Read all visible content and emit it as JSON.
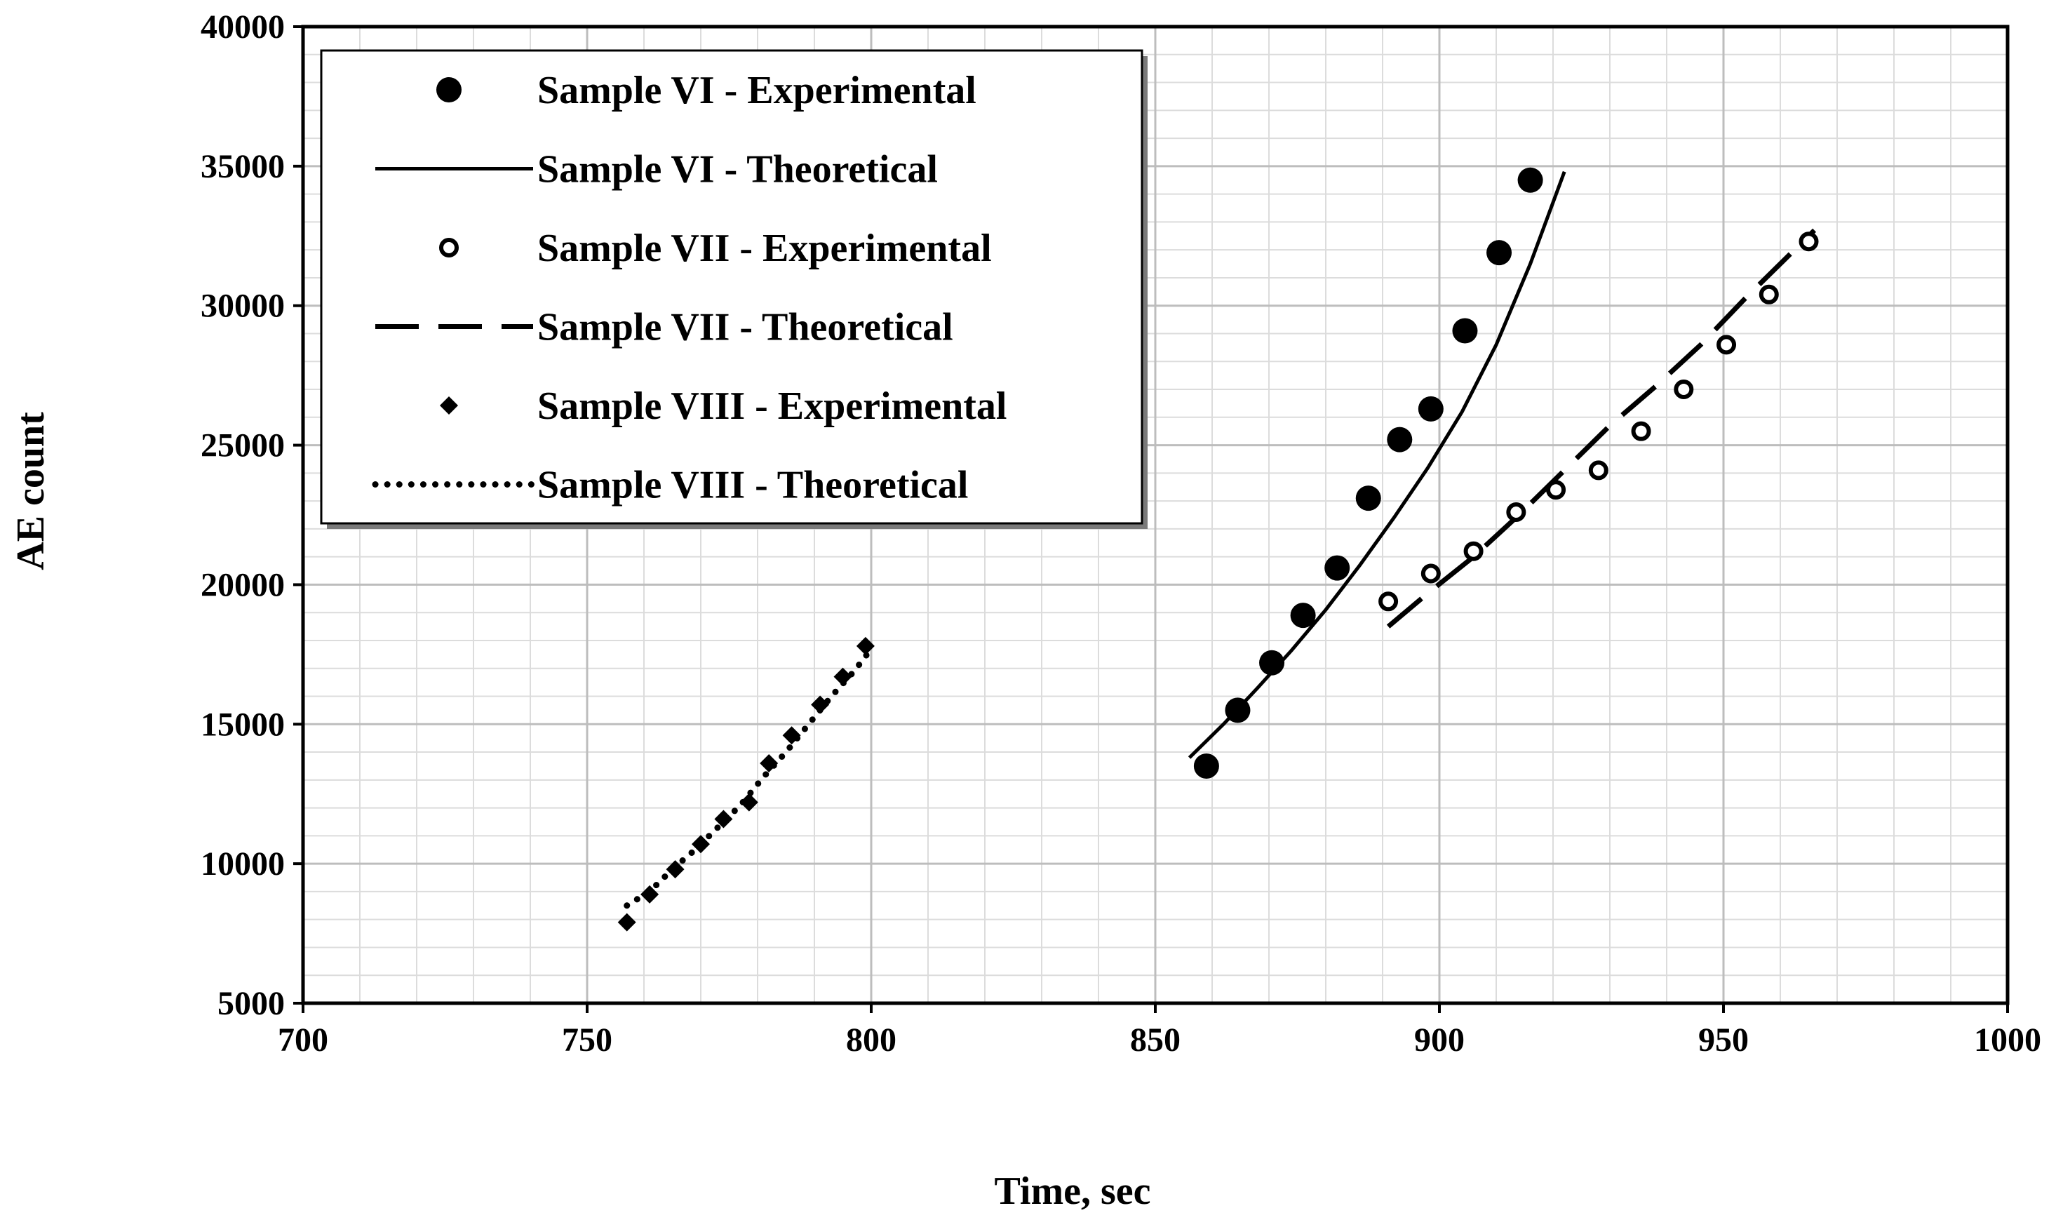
{
  "chart_data": {
    "type": "scatter",
    "title": "",
    "xlabel": "Time, sec",
    "ylabel": "AE count",
    "xlim": [
      700,
      1000
    ],
    "ylim": [
      5000,
      40000
    ],
    "xticks": [
      700,
      750,
      800,
      850,
      900,
      950,
      1000
    ],
    "yticks": [
      5000,
      10000,
      15000,
      20000,
      25000,
      30000,
      35000,
      40000
    ],
    "x_minor_step": 10,
    "y_minor_step": 1000,
    "grid": true,
    "legend_position": "top-left",
    "series": [
      {
        "name": "Sample VI - Experimental",
        "kind": "marker",
        "marker": "filled-circle",
        "points": [
          [
            859,
            13500
          ],
          [
            864.5,
            15500
          ],
          [
            870.5,
            17200
          ],
          [
            876,
            18900
          ],
          [
            882,
            20600
          ],
          [
            887.5,
            23100
          ],
          [
            893,
            25200
          ],
          [
            898.5,
            26300
          ],
          [
            904.5,
            29100
          ],
          [
            910.5,
            31900
          ],
          [
            916,
            34500
          ]
        ]
      },
      {
        "name": "Sample VI - Theoretical",
        "kind": "line",
        "dash": "solid",
        "points": [
          [
            856,
            13800
          ],
          [
            862,
            15000
          ],
          [
            868,
            16300
          ],
          [
            874,
            17650
          ],
          [
            880,
            19100
          ],
          [
            886,
            20700
          ],
          [
            892,
            22400
          ],
          [
            898,
            24200
          ],
          [
            904,
            26200
          ],
          [
            910,
            28600
          ],
          [
            916,
            31500
          ],
          [
            922,
            34800
          ]
        ]
      },
      {
        "name": "Sample VII - Experimental",
        "kind": "marker",
        "marker": "open-circle",
        "points": [
          [
            891,
            19400
          ],
          [
            898.5,
            20400
          ],
          [
            906,
            21200
          ],
          [
            913.5,
            22600
          ],
          [
            920.5,
            23400
          ],
          [
            928,
            24100
          ],
          [
            935.5,
            25500
          ],
          [
            943,
            27000
          ],
          [
            950.5,
            28600
          ],
          [
            958,
            30400
          ],
          [
            965,
            32300
          ]
        ]
      },
      {
        "name": "Sample VII - Theoretical",
        "kind": "line",
        "dash": "long-dash",
        "points": [
          [
            891,
            18500
          ],
          [
            898,
            19700
          ],
          [
            906,
            21000
          ],
          [
            914,
            22500
          ],
          [
            922,
            24100
          ],
          [
            930,
            25700
          ],
          [
            938,
            27100
          ],
          [
            946,
            28600
          ],
          [
            954,
            30300
          ],
          [
            962,
            31900
          ],
          [
            966,
            32700
          ]
        ]
      },
      {
        "name": "Sample VIII - Experimental",
        "kind": "marker",
        "marker": "diamond",
        "points": [
          [
            757,
            7900
          ],
          [
            761,
            8900
          ],
          [
            765.5,
            9800
          ],
          [
            770,
            10700
          ],
          [
            774,
            11600
          ],
          [
            778.5,
            12200
          ],
          [
            782,
            13600
          ],
          [
            786,
            14600
          ],
          [
            791,
            15700
          ],
          [
            795,
            16700
          ],
          [
            799,
            17800
          ]
        ]
      },
      {
        "name": "Sample VIII - Theoretical",
        "kind": "line",
        "dash": "dotted",
        "points": [
          [
            757,
            8500
          ],
          [
            761,
            9000
          ],
          [
            765,
            9800
          ],
          [
            769,
            10500
          ],
          [
            773,
            11300
          ],
          [
            777,
            12100
          ],
          [
            781,
            13100
          ],
          [
            785,
            14000
          ],
          [
            789,
            15000
          ],
          [
            793,
            16000
          ],
          [
            797,
            16900
          ],
          [
            800,
            17700
          ]
        ]
      }
    ]
  }
}
